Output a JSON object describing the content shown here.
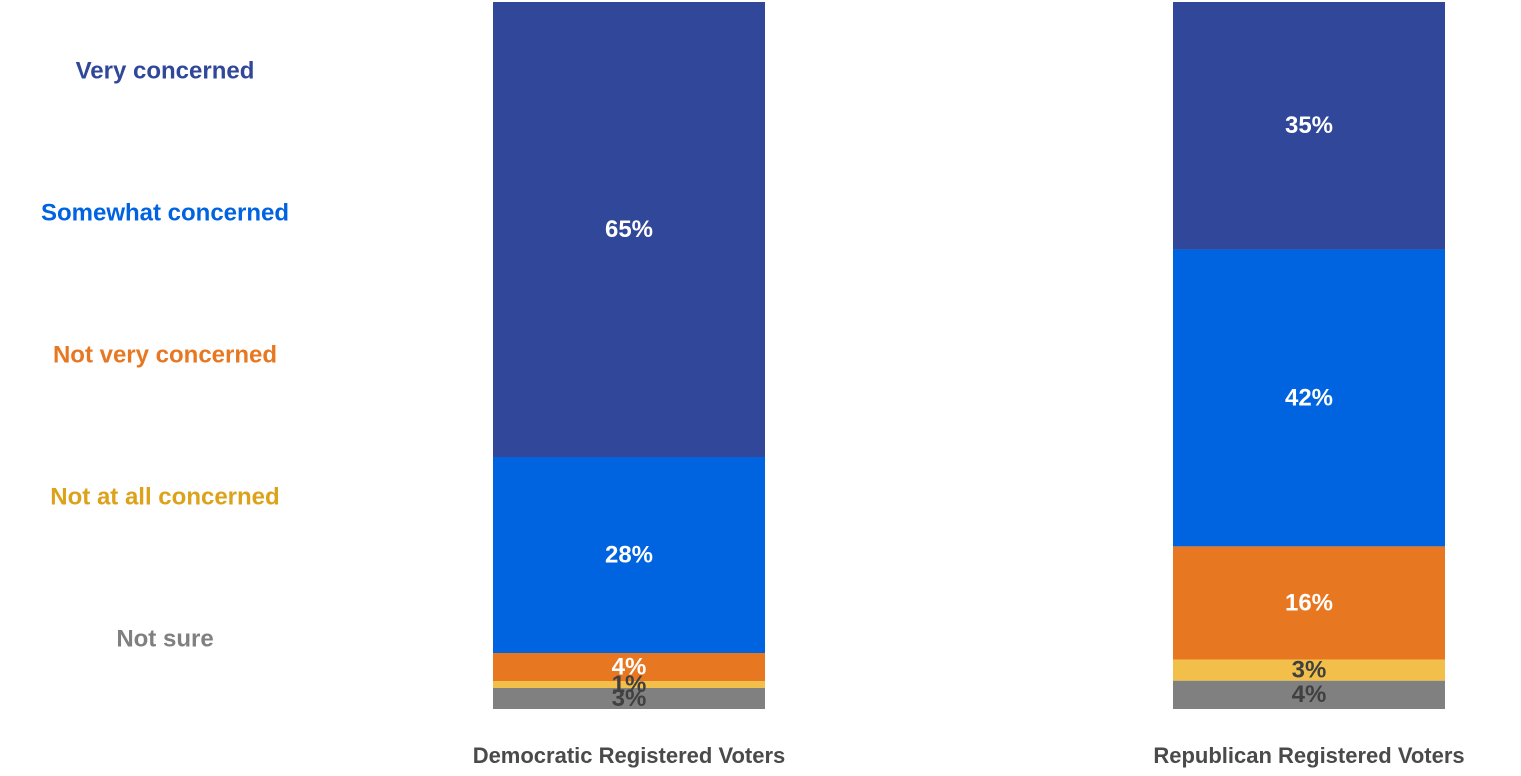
{
  "chart_data": {
    "type": "bar",
    "stacked": true,
    "categories": [
      "Democratic Registered Voters",
      "Republican Registered Voters"
    ],
    "series": [
      {
        "name": "Very concerned",
        "color": "#30479a",
        "values": [
          65,
          35
        ],
        "labels": [
          "65%",
          "35%"
        ]
      },
      {
        "name": "Somewhat concerned",
        "color": "#0063e0",
        "values": [
          28,
          42
        ],
        "labels": [
          "28%",
          "42%"
        ]
      },
      {
        "name": "Not very concerned",
        "color": "#e87722",
        "values": [
          4,
          16
        ],
        "labels": [
          "4%",
          "16%"
        ]
      },
      {
        "name": "Not at all concerned",
        "color": "#f2c04a",
        "values": [
          1,
          3
        ],
        "labels": [
          "1%",
          "3%"
        ]
      },
      {
        "name": "Not sure",
        "color": "#808080",
        "values": [
          3,
          4
        ],
        "labels": [
          "3%",
          "4%"
        ]
      }
    ],
    "legend_text_colors": [
      "#30479a",
      "#0063e0",
      "#e87722",
      "#dca21a",
      "#808080"
    ],
    "legend_position": "left",
    "ylim": [
      0,
      100
    ],
    "grid": false
  }
}
